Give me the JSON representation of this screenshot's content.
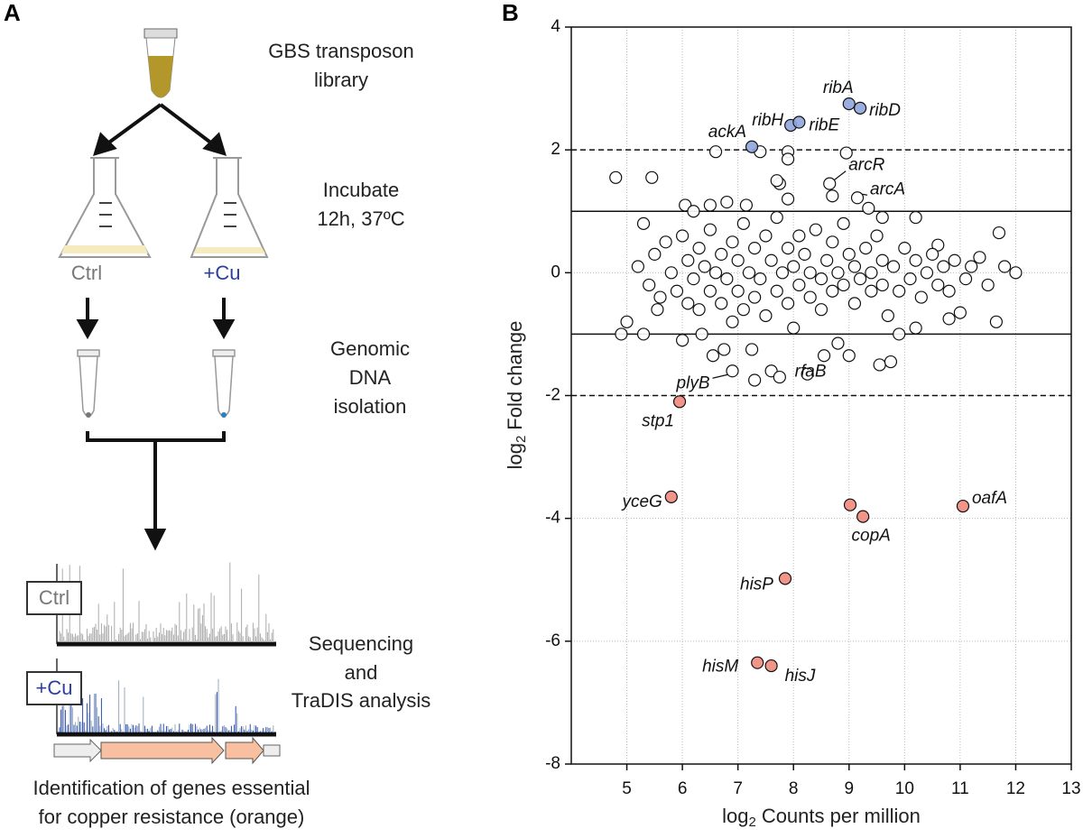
{
  "panel_a": {
    "label": "A",
    "library": [
      "GBS transposon",
      "library"
    ],
    "incubate": [
      "Incubate",
      "12h, 37ºC"
    ],
    "conditions": [
      "Ctrl",
      "+Cu"
    ],
    "isolation": [
      "Genomic",
      "DNA",
      "isolation"
    ],
    "tracks": [
      "Ctrl",
      "+Cu"
    ],
    "sequencing": [
      "Sequencing",
      "and",
      "TraDIS analysis"
    ],
    "conclusion": [
      "Identification of genes essential",
      "for copper resistance (orange)"
    ]
  },
  "chart_data": {
    "type": "scatter",
    "panel_label": "B",
    "xlabel": [
      "log",
      "2",
      "Counts per million"
    ],
    "ylabel": [
      "log",
      "2",
      "Fold change"
    ],
    "xlim": [
      4,
      13
    ],
    "xticks": [
      5,
      6,
      7,
      8,
      9,
      10,
      11,
      12,
      13
    ],
    "ylim": [
      -8,
      4
    ],
    "yticks": [
      -8,
      -6,
      -4,
      -2,
      0,
      2,
      4
    ],
    "grid": true,
    "reference_lines": [
      {
        "value": 2,
        "style": "dashed"
      },
      {
        "value": 1,
        "style": "solid"
      },
      {
        "value": -1,
        "style": "solid"
      },
      {
        "value": -2,
        "style": "dashed"
      }
    ],
    "series": [
      {
        "color": "#ffffff",
        "x": [
          4.8,
          5.45,
          6.6,
          7.4,
          7.9,
          7.9,
          7.75,
          8.95,
          9.35,
          5.55,
          5.0,
          4.9,
          5.3,
          6.35,
          6.75,
          6.55,
          7.25,
          7.6,
          7.75,
          7.3,
          8.25,
          9.55,
          9.75,
          9.0,
          9.9,
          10.8,
          11.65,
          11.0,
          12.0,
          11.7,
          11.35,
          10.6,
          6.05,
          6.5,
          6.8,
          7.15,
          7.7,
          5.2,
          5.4,
          5.5,
          5.6,
          5.7,
          5.8,
          5.9,
          6.0,
          6.1,
          6.1,
          6.2,
          6.3,
          6.3,
          6.4,
          6.5,
          6.5,
          6.6,
          6.7,
          6.7,
          6.8,
          6.9,
          6.9,
          7.0,
          7.0,
          7.1,
          7.1,
          7.2,
          7.3,
          7.3,
          7.4,
          7.5,
          7.5,
          7.6,
          7.7,
          7.7,
          7.8,
          7.9,
          7.9,
          8.0,
          8.0,
          8.1,
          8.1,
          8.2,
          8.3,
          8.3,
          8.4,
          8.5,
          8.5,
          8.6,
          8.7,
          8.7,
          8.8,
          8.9,
          8.9,
          9.0,
          9.1,
          9.1,
          9.2,
          9.3,
          9.4,
          9.4,
          9.5,
          9.6,
          9.6,
          9.7,
          9.8,
          9.9,
          10.0,
          10.1,
          10.2,
          10.3,
          10.4,
          10.5,
          10.6,
          10.7,
          10.8,
          10.9,
          11.1,
          11.2,
          11.5,
          11.8,
          5.3,
          6.2,
          7.9,
          8.7,
          9.6,
          10.2,
          6.0,
          8.8,
          10.2
        ],
        "values": [
          1.55,
          1.55,
          1.97,
          1.97,
          1.97,
          1.85,
          1.45,
          1.95,
          1.05,
          -0.6,
          -0.8,
          -1.0,
          -1.0,
          -1.0,
          -1.25,
          -1.35,
          -1.25,
          -1.6,
          -1.7,
          -1.75,
          -1.65,
          -1.5,
          -1.45,
          -1.35,
          -1.0,
          -0.75,
          -0.8,
          -0.65,
          0,
          0.65,
          0.25,
          0.45,
          1.1,
          1.1,
          1.15,
          1.1,
          1.5,
          0.1,
          -0.2,
          0.3,
          -0.4,
          0.5,
          0.0,
          -0.3,
          0.6,
          -0.5,
          0.2,
          -0.1,
          0.4,
          -0.6,
          0.1,
          -0.3,
          0.7,
          0.0,
          -0.5,
          0.3,
          -0.1,
          0.5,
          -0.8,
          0.2,
          -0.3,
          0.8,
          -0.6,
          0.0,
          0.4,
          -0.4,
          -0.1,
          0.6,
          -0.7,
          0.2,
          -0.3,
          0.9,
          0.0,
          -0.5,
          0.4,
          0.1,
          -0.9,
          0.6,
          -0.2,
          0.3,
          -0.4,
          0.0,
          0.7,
          -0.1,
          -0.6,
          0.2,
          -0.3,
          0.5,
          0.0,
          -0.2,
          0.8,
          0.3,
          -0.5,
          0.1,
          -0.1,
          0.4,
          -0.3,
          0.0,
          0.6,
          -0.2,
          0.2,
          -0.7,
          0.1,
          -0.3,
          0.4,
          -0.1,
          0.2,
          -0.4,
          0.0,
          0.3,
          -0.2,
          0.1,
          -0.3,
          0.2,
          -0.1,
          0.1,
          -0.2,
          0.1,
          0.8,
          1.0,
          1.2,
          1.25,
          0.9,
          0.9,
          -1.1,
          -1.15,
          -0.9
        ]
      },
      {
        "color": "#ffffff",
        "x": [
          8.65,
          9.15,
          6.9,
          8.55
        ],
        "values": [
          1.45,
          1.22,
          -1.6,
          -1.35
        ],
        "labels": [
          "arcR",
          "arcA",
          "plyB",
          "rfaB"
        ]
      },
      {
        "color": "#8fa6dd",
        "x": [
          7.25,
          7.95,
          8.1,
          9.0,
          9.2
        ],
        "values": [
          2.05,
          2.4,
          2.45,
          2.75,
          2.68
        ],
        "labels": [
          "ackA",
          "ribH",
          "ribE",
          "ribA",
          "ribD"
        ]
      },
      {
        "color": "#ef8a7c",
        "x": [
          5.95,
          5.8,
          9.02,
          9.25,
          11.05,
          7.85,
          7.35,
          7.6
        ],
        "values": [
          -2.1,
          -3.65,
          -3.78,
          -3.97,
          -3.8,
          -4.98,
          -6.35,
          -6.4
        ],
        "labels": [
          "stp1",
          "yceG",
          null,
          "copA",
          "oafA",
          "hisP",
          "hisM",
          "hisJ"
        ]
      }
    ]
  }
}
